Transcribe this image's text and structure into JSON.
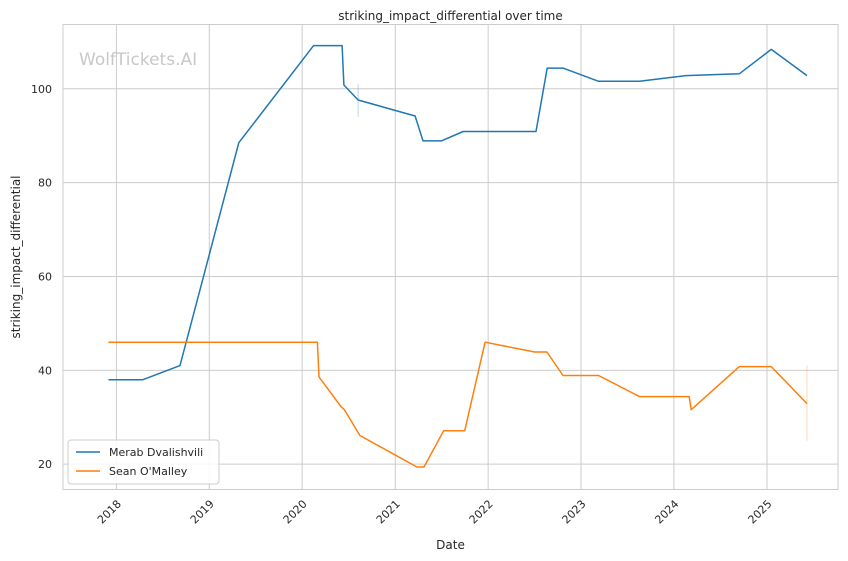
{
  "chart_data": {
    "type": "line",
    "title": "striking_impact_differential over time",
    "xlabel": "Date",
    "ylabel": "striking_impact_differential",
    "watermark": "WolfTickets.AI",
    "x_ticks": [
      "2018",
      "2019",
      "2020",
      "2021",
      "2022",
      "2023",
      "2024",
      "2025"
    ],
    "y_ticks": [
      20,
      40,
      60,
      80,
      100
    ],
    "xlim": [
      "2017-06-05",
      "2025-10-07"
    ],
    "ylim": [
      14.6,
      113.7
    ],
    "grid": true,
    "legend_position": "lower-left",
    "series": [
      {
        "name": "Merab Dvalishvili",
        "color": "#1f77b4",
        "points": [
          [
            "2017-12-01",
            38.0
          ],
          [
            "2018-04-15",
            38.0
          ],
          [
            "2018-09-08",
            41.0
          ],
          [
            "2019-04-27",
            88.5
          ],
          [
            "2020-02-15",
            109.2
          ],
          [
            "2020-06-06",
            109.2
          ],
          [
            "2020-06-13",
            100.8
          ],
          [
            "2020-08-08",
            97.6
          ],
          [
            "2021-03-20",
            94.2
          ],
          [
            "2021-04-20",
            88.9
          ],
          [
            "2021-07-01",
            88.9
          ],
          [
            "2021-09-25",
            90.9
          ],
          [
            "2022-07-08",
            90.9
          ],
          [
            "2022-08-21",
            104.4
          ],
          [
            "2022-10-22",
            104.4
          ],
          [
            "2023-03-11",
            101.6
          ],
          [
            "2023-08-19",
            101.6
          ],
          [
            "2024-02-17",
            102.8
          ],
          [
            "2024-09-14",
            103.2
          ],
          [
            "2025-01-18",
            108.4
          ],
          [
            "2025-06-07",
            102.8
          ]
        ],
        "error_bars": [
          {
            "x": "2020-08-08",
            "low": 94.0,
            "high": 101.0
          }
        ]
      },
      {
        "name": "Sean O'Malley",
        "color": "#ff7f0e",
        "points": [
          [
            "2017-12-01",
            46.0
          ],
          [
            "2020-03-01",
            46.0
          ],
          [
            "2020-03-07",
            38.6
          ],
          [
            "2020-06-01",
            32.3
          ],
          [
            "2020-06-15",
            31.6
          ],
          [
            "2020-08-15",
            26.1
          ],
          [
            "2021-03-27",
            19.4
          ],
          [
            "2021-04-24",
            19.4
          ],
          [
            "2021-07-10",
            27.1
          ],
          [
            "2021-10-01",
            27.1
          ],
          [
            "2021-12-20",
            46.0
          ],
          [
            "2022-07-02",
            43.9
          ],
          [
            "2022-08-20",
            43.9
          ],
          [
            "2022-10-22",
            38.9
          ],
          [
            "2023-03-11",
            38.9
          ],
          [
            "2023-08-19",
            34.4
          ],
          [
            "2024-03-01",
            34.4
          ],
          [
            "2024-03-09",
            31.6
          ],
          [
            "2024-09-14",
            40.8
          ],
          [
            "2025-01-18",
            40.8
          ],
          [
            "2025-06-07",
            32.9
          ]
        ],
        "error_bars": [
          {
            "x": "2025-06-07",
            "low": 25.0,
            "high": 41.0
          }
        ]
      }
    ]
  }
}
